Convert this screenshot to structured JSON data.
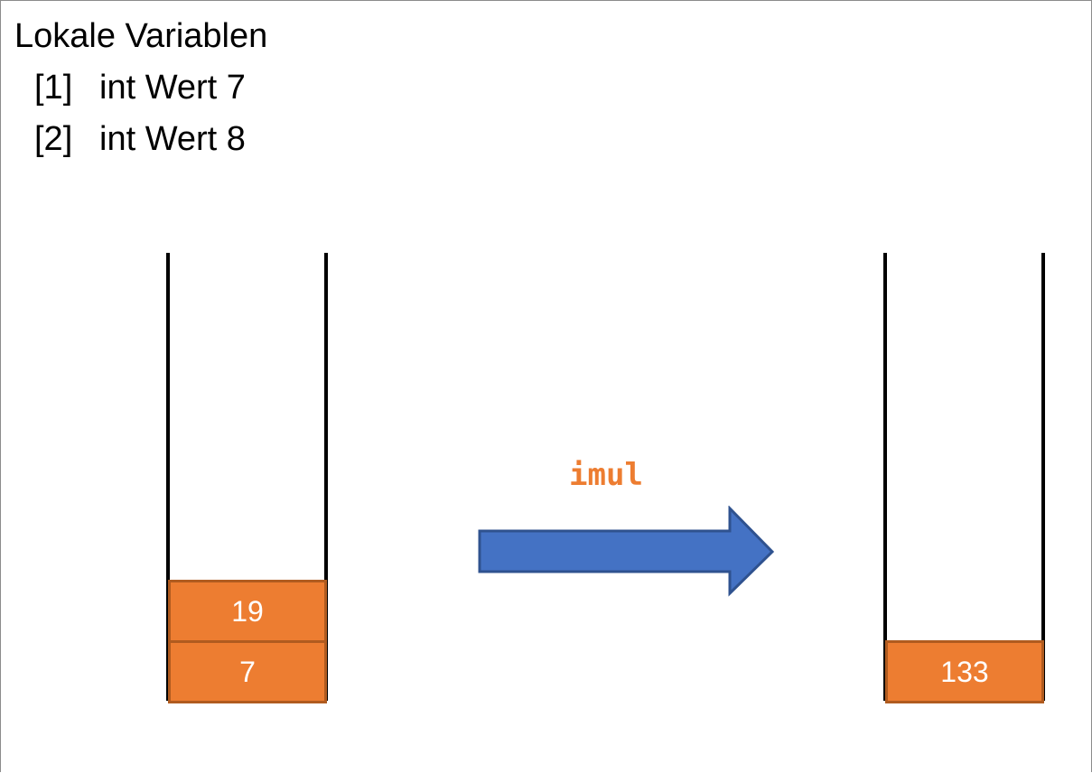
{
  "locals": {
    "title": "Lokale Variablen",
    "variables": [
      {
        "index": "[1]",
        "label": "int Wert 7"
      },
      {
        "index": "[2]",
        "label": "int Wert 8"
      }
    ]
  },
  "stack_before": {
    "cells": [
      "19",
      "7"
    ]
  },
  "instruction": "imul",
  "stack_after": {
    "cells": [
      "133"
    ]
  },
  "colors": {
    "cell_fill": "#ed7d31",
    "cell_border": "#b05b1f",
    "arrow_fill": "#4472c4",
    "arrow_border": "#2f528f",
    "instruction_text": "#ed7d31"
  }
}
